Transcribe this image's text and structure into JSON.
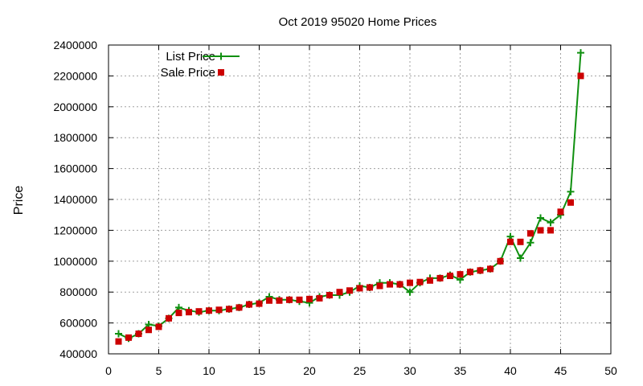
{
  "chart_data": {
    "type": "line",
    "title": "Oct 2019 95020 Home Prices",
    "xlabel": "",
    "ylabel": "Price",
    "xlim": [
      0,
      50
    ],
    "ylim": [
      400000,
      2400000
    ],
    "xticks": [
      0,
      5,
      10,
      15,
      20,
      25,
      30,
      35,
      40,
      45,
      50
    ],
    "yticks": [
      400000,
      600000,
      800000,
      1000000,
      1200000,
      1400000,
      1600000,
      1800000,
      2000000,
      2200000,
      2400000
    ],
    "grid": true,
    "legend_position": "top-left",
    "series": [
      {
        "name": "List Price",
        "style": "linespoints-plus",
        "color": "#109010",
        "x": [
          1,
          2,
          3,
          4,
          5,
          6,
          7,
          8,
          9,
          10,
          11,
          12,
          13,
          14,
          15,
          16,
          17,
          18,
          19,
          20,
          21,
          22,
          23,
          24,
          25,
          26,
          27,
          28,
          29,
          30,
          31,
          32,
          33,
          34,
          35,
          36,
          37,
          38,
          39,
          40,
          41,
          42,
          43,
          44,
          45,
          46,
          47
        ],
        "y": [
          530000,
          500000,
          530000,
          590000,
          580000,
          630000,
          700000,
          680000,
          670000,
          680000,
          680000,
          690000,
          700000,
          720000,
          730000,
          770000,
          750000,
          750000,
          740000,
          730000,
          770000,
          780000,
          780000,
          800000,
          840000,
          830000,
          860000,
          860000,
          850000,
          800000,
          860000,
          890000,
          890000,
          910000,
          880000,
          930000,
          940000,
          950000,
          1000000,
          1160000,
          1020000,
          1120000,
          1280000,
          1250000,
          1300000,
          1450000,
          2350000
        ]
      },
      {
        "name": "Sale Price",
        "style": "points-square",
        "color": "#cc0000",
        "x": [
          1,
          2,
          3,
          4,
          5,
          6,
          7,
          8,
          9,
          10,
          11,
          12,
          13,
          14,
          15,
          16,
          17,
          18,
          19,
          20,
          21,
          22,
          23,
          24,
          25,
          26,
          27,
          28,
          29,
          30,
          31,
          32,
          33,
          34,
          35,
          36,
          37,
          38,
          39,
          40,
          41,
          42,
          43,
          44,
          45,
          46,
          47
        ],
        "y": [
          480000,
          505000,
          530000,
          555000,
          575000,
          630000,
          665000,
          670000,
          675000,
          680000,
          685000,
          690000,
          700000,
          720000,
          725000,
          745000,
          745000,
          750000,
          750000,
          755000,
          760000,
          780000,
          800000,
          810000,
          825000,
          830000,
          840000,
          850000,
          850000,
          860000,
          865000,
          875000,
          890000,
          905000,
          915000,
          930000,
          940000,
          950000,
          1000000,
          1125000,
          1125000,
          1180000,
          1200000,
          1200000,
          1320000,
          1380000,
          2200000
        ]
      }
    ]
  }
}
